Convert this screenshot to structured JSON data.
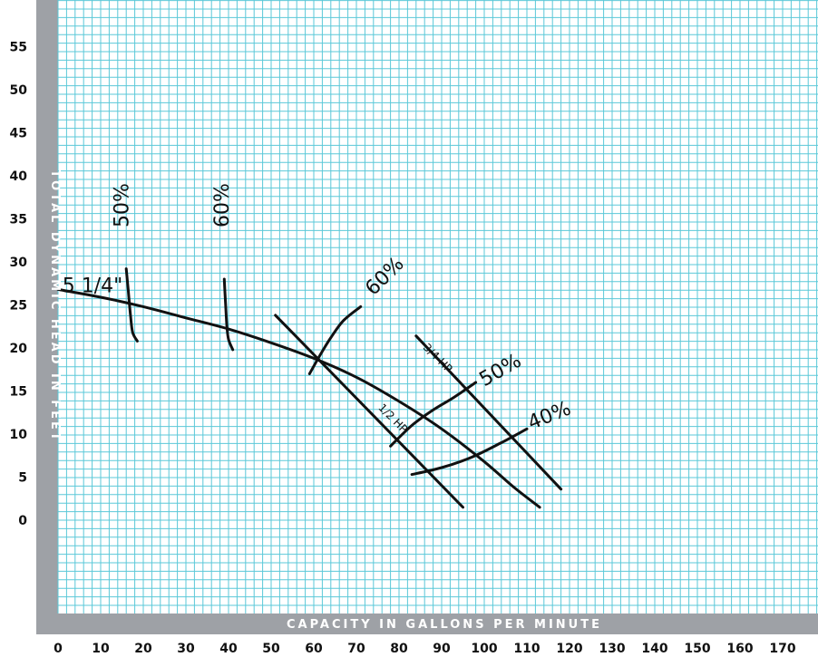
{
  "chart_data": {
    "type": "line",
    "title": "",
    "xlabel": "CAPACITY IN GALLONS PER MINUTE",
    "ylabel": "TOTAL DYNAMIC HEAD IN FEET",
    "xlim": [
      0,
      170
    ],
    "ylim": [
      0,
      55
    ],
    "x_ticks": [
      "0",
      "10",
      "20",
      "30",
      "40",
      "50",
      "60",
      "70",
      "80",
      "90",
      "100",
      "110",
      "120",
      "130",
      "140",
      "150",
      "160",
      "170"
    ],
    "y_ticks": [
      "0",
      "5",
      "10",
      "15",
      "20",
      "25",
      "30",
      "35",
      "40",
      "45",
      "50",
      "55"
    ],
    "grid": true,
    "grid_color": "#5bc8d8",
    "frame_color": "#9ea1a6",
    "line_color": "#111111",
    "series": [
      {
        "name": "5 1/4\"",
        "kind": "impeller-curve",
        "points": [
          [
            0,
            26.8
          ],
          [
            10,
            25.9
          ],
          [
            20,
            24.8
          ],
          [
            30,
            23.5
          ],
          [
            40,
            22.2
          ],
          [
            50,
            20.6
          ],
          [
            60,
            18.8
          ],
          [
            70,
            16.6
          ],
          [
            80,
            13.8
          ],
          [
            90,
            10.6
          ],
          [
            100,
            6.8
          ],
          [
            107,
            3.8
          ],
          [
            113,
            1.5
          ]
        ]
      },
      {
        "name": "1/2 HP",
        "kind": "power-line",
        "points": [
          [
            51,
            23.8
          ],
          [
            95,
            1.5
          ]
        ]
      },
      {
        "name": "3/4 HP",
        "kind": "power-line",
        "points": [
          [
            84,
            21.4
          ],
          [
            118,
            3.6
          ]
        ]
      },
      {
        "name": "50%",
        "kind": "efficiency-line",
        "points": [
          [
            16,
            29.2
          ],
          [
            16.5,
            26.5
          ],
          [
            17,
            23.8
          ],
          [
            17.5,
            21.8
          ],
          [
            18.6,
            20.8
          ]
        ]
      },
      {
        "name": "60%",
        "kind": "efficiency-line",
        "points": [
          [
            39,
            28
          ],
          [
            39.3,
            25.2
          ],
          [
            39.6,
            22.6
          ],
          [
            40,
            21
          ],
          [
            41,
            19.8
          ]
        ]
      },
      {
        "name": "60%",
        "kind": "efficiency-line",
        "points": [
          [
            59,
            17
          ],
          [
            61.5,
            19.2
          ],
          [
            64,
            21.2
          ],
          [
            67,
            23.2
          ],
          [
            71,
            24.8
          ]
        ]
      },
      {
        "name": "50%",
        "kind": "efficiency-line",
        "points": [
          [
            78,
            8.6
          ],
          [
            83,
            11
          ],
          [
            88,
            12.8
          ],
          [
            93,
            14.3
          ],
          [
            98,
            16
          ]
        ]
      },
      {
        "name": "40%",
        "kind": "efficiency-line",
        "points": [
          [
            83,
            5.3
          ],
          [
            90,
            6.1
          ],
          [
            97,
            7.3
          ],
          [
            104,
            9
          ],
          [
            110,
            10.6
          ]
        ]
      }
    ],
    "annotations": [
      {
        "text": "5 1/4\"",
        "x": 1,
        "y": 26.5
      },
      {
        "text": "50%",
        "x": 16.5,
        "y": 34
      },
      {
        "text": "60%",
        "x": 40,
        "y": 34
      },
      {
        "text": "60%",
        "x": 74,
        "y": 26
      },
      {
        "text": "3/4 HP",
        "x": 85.5,
        "y": 20
      },
      {
        "text": "1/2 HP",
        "x": 75,
        "y": 13
      },
      {
        "text": "50%",
        "x": 100,
        "y": 15.5
      },
      {
        "text": "40%",
        "x": 111,
        "y": 10.5
      }
    ]
  }
}
